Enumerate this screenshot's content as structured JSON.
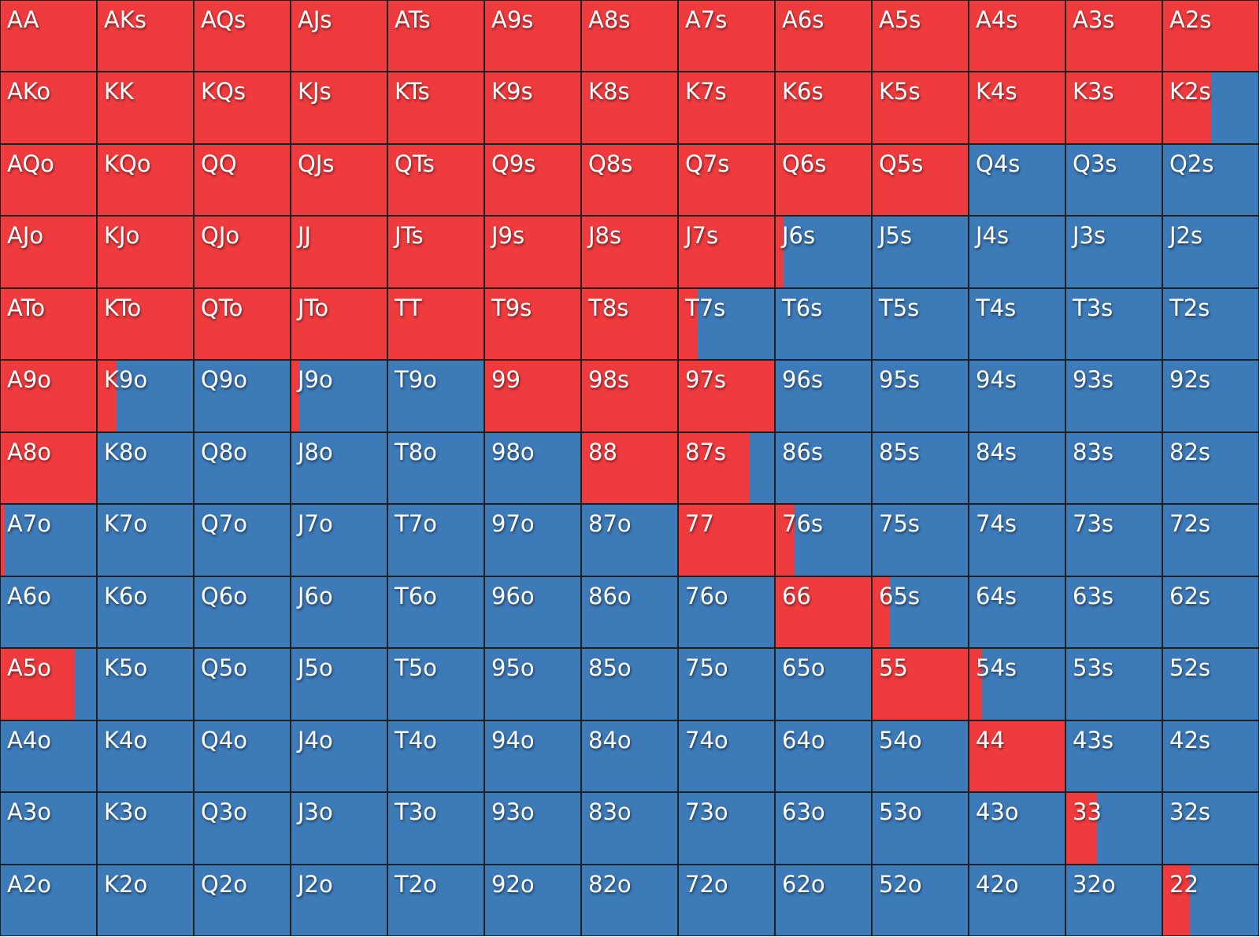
{
  "colors": {
    "action_1": "#ef3b3e",
    "action_2": "#3d7ab8"
  },
  "hand_matrix": {
    "rows": [
      [
        {
          "hand": "AA",
          "freq": 1
        },
        {
          "hand": "AKs",
          "freq": 1
        },
        {
          "hand": "AQs",
          "freq": 1
        },
        {
          "hand": "AJs",
          "freq": 1
        },
        {
          "hand": "ATs",
          "freq": 1
        },
        {
          "hand": "A9s",
          "freq": 1
        },
        {
          "hand": "A8s",
          "freq": 1
        },
        {
          "hand": "A7s",
          "freq": 1
        },
        {
          "hand": "A6s",
          "freq": 1
        },
        {
          "hand": "A5s",
          "freq": 1
        },
        {
          "hand": "A4s",
          "freq": 1
        },
        {
          "hand": "A3s",
          "freq": 1
        },
        {
          "hand": "A2s",
          "freq": 1
        }
      ],
      [
        {
          "hand": "AKo",
          "freq": 1
        },
        {
          "hand": "KK",
          "freq": 1
        },
        {
          "hand": "KQs",
          "freq": 1
        },
        {
          "hand": "KJs",
          "freq": 1
        },
        {
          "hand": "KTs",
          "freq": 1
        },
        {
          "hand": "K9s",
          "freq": 1
        },
        {
          "hand": "K8s",
          "freq": 1
        },
        {
          "hand": "K7s",
          "freq": 1
        },
        {
          "hand": "K6s",
          "freq": 1
        },
        {
          "hand": "K5s",
          "freq": 1
        },
        {
          "hand": "K4s",
          "freq": 1
        },
        {
          "hand": "K3s",
          "freq": 1
        },
        {
          "hand": "K2s",
          "freq": 0.5
        }
      ],
      [
        {
          "hand": "AQo",
          "freq": 1
        },
        {
          "hand": "KQo",
          "freq": 1
        },
        {
          "hand": "QQ",
          "freq": 1
        },
        {
          "hand": "QJs",
          "freq": 1
        },
        {
          "hand": "QTs",
          "freq": 1
        },
        {
          "hand": "Q9s",
          "freq": 1
        },
        {
          "hand": "Q8s",
          "freq": 1
        },
        {
          "hand": "Q7s",
          "freq": 1
        },
        {
          "hand": "Q6s",
          "freq": 1
        },
        {
          "hand": "Q5s",
          "freq": 1
        },
        {
          "hand": "Q4s",
          "freq": 0
        },
        {
          "hand": "Q3s",
          "freq": 0
        },
        {
          "hand": "Q2s",
          "freq": 0
        }
      ],
      [
        {
          "hand": "AJo",
          "freq": 1
        },
        {
          "hand": "KJo",
          "freq": 1
        },
        {
          "hand": "QJo",
          "freq": 1
        },
        {
          "hand": "JJ",
          "freq": 1
        },
        {
          "hand": "JTs",
          "freq": 1
        },
        {
          "hand": "J9s",
          "freq": 1
        },
        {
          "hand": "J8s",
          "freq": 1
        },
        {
          "hand": "J7s",
          "freq": 1
        },
        {
          "hand": "J6s",
          "freq": 0.08
        },
        {
          "hand": "J5s",
          "freq": 0
        },
        {
          "hand": "J4s",
          "freq": 0
        },
        {
          "hand": "J3s",
          "freq": 0
        },
        {
          "hand": "J2s",
          "freq": 0
        }
      ],
      [
        {
          "hand": "ATo",
          "freq": 1
        },
        {
          "hand": "KTo",
          "freq": 1
        },
        {
          "hand": "QTo",
          "freq": 1
        },
        {
          "hand": "JTo",
          "freq": 1
        },
        {
          "hand": "TT",
          "freq": 1
        },
        {
          "hand": "T9s",
          "freq": 1
        },
        {
          "hand": "T8s",
          "freq": 1
        },
        {
          "hand": "T7s",
          "freq": 0.2
        },
        {
          "hand": "T6s",
          "freq": 0
        },
        {
          "hand": "T5s",
          "freq": 0
        },
        {
          "hand": "T4s",
          "freq": 0
        },
        {
          "hand": "T3s",
          "freq": 0
        },
        {
          "hand": "T2s",
          "freq": 0
        }
      ],
      [
        {
          "hand": "A9o",
          "freq": 1
        },
        {
          "hand": "K9o",
          "freq": 0.2
        },
        {
          "hand": "Q9o",
          "freq": 0
        },
        {
          "hand": "J9o",
          "freq": 0.08
        },
        {
          "hand": "T9o",
          "freq": 0
        },
        {
          "hand": "99",
          "freq": 1
        },
        {
          "hand": "98s",
          "freq": 1
        },
        {
          "hand": "97s",
          "freq": 1
        },
        {
          "hand": "96s",
          "freq": 0
        },
        {
          "hand": "95s",
          "freq": 0
        },
        {
          "hand": "94s",
          "freq": 0
        },
        {
          "hand": "93s",
          "freq": 0
        },
        {
          "hand": "92s",
          "freq": 0
        }
      ],
      [
        {
          "hand": "A8o",
          "freq": 1
        },
        {
          "hand": "K8o",
          "freq": 0
        },
        {
          "hand": "Q8o",
          "freq": 0
        },
        {
          "hand": "J8o",
          "freq": 0
        },
        {
          "hand": "T8o",
          "freq": 0
        },
        {
          "hand": "98o",
          "freq": 0
        },
        {
          "hand": "88",
          "freq": 1
        },
        {
          "hand": "87s",
          "freq": 0.74
        },
        {
          "hand": "86s",
          "freq": 0
        },
        {
          "hand": "85s",
          "freq": 0
        },
        {
          "hand": "84s",
          "freq": 0
        },
        {
          "hand": "83s",
          "freq": 0
        },
        {
          "hand": "82s",
          "freq": 0
        }
      ],
      [
        {
          "hand": "A7o",
          "freq": 0.04
        },
        {
          "hand": "K7o",
          "freq": 0
        },
        {
          "hand": "Q7o",
          "freq": 0
        },
        {
          "hand": "J7o",
          "freq": 0
        },
        {
          "hand": "T7o",
          "freq": 0
        },
        {
          "hand": "97o",
          "freq": 0
        },
        {
          "hand": "87o",
          "freq": 0
        },
        {
          "hand": "77",
          "freq": 1
        },
        {
          "hand": "76s",
          "freq": 0.2
        },
        {
          "hand": "75s",
          "freq": 0
        },
        {
          "hand": "74s",
          "freq": 0
        },
        {
          "hand": "73s",
          "freq": 0
        },
        {
          "hand": "72s",
          "freq": 0
        }
      ],
      [
        {
          "hand": "A6o",
          "freq": 0
        },
        {
          "hand": "K6o",
          "freq": 0
        },
        {
          "hand": "Q6o",
          "freq": 0
        },
        {
          "hand": "J6o",
          "freq": 0
        },
        {
          "hand": "T6o",
          "freq": 0
        },
        {
          "hand": "96o",
          "freq": 0
        },
        {
          "hand": "86o",
          "freq": 0
        },
        {
          "hand": "76o",
          "freq": 0
        },
        {
          "hand": "66",
          "freq": 1
        },
        {
          "hand": "65s",
          "freq": 0.18
        },
        {
          "hand": "64s",
          "freq": 0
        },
        {
          "hand": "63s",
          "freq": 0
        },
        {
          "hand": "62s",
          "freq": 0
        }
      ],
      [
        {
          "hand": "A5o",
          "freq": 0.78
        },
        {
          "hand": "K5o",
          "freq": 0
        },
        {
          "hand": "Q5o",
          "freq": 0
        },
        {
          "hand": "J5o",
          "freq": 0
        },
        {
          "hand": "T5o",
          "freq": 0
        },
        {
          "hand": "95o",
          "freq": 0
        },
        {
          "hand": "85o",
          "freq": 0
        },
        {
          "hand": "75o",
          "freq": 0
        },
        {
          "hand": "65o",
          "freq": 0
        },
        {
          "hand": "55",
          "freq": 1
        },
        {
          "hand": "54s",
          "freq": 0.13
        },
        {
          "hand": "53s",
          "freq": 0
        },
        {
          "hand": "52s",
          "freq": 0
        }
      ],
      [
        {
          "hand": "A4o",
          "freq": 0
        },
        {
          "hand": "K4o",
          "freq": 0
        },
        {
          "hand": "Q4o",
          "freq": 0
        },
        {
          "hand": "J4o",
          "freq": 0
        },
        {
          "hand": "T4o",
          "freq": 0
        },
        {
          "hand": "94o",
          "freq": 0
        },
        {
          "hand": "84o",
          "freq": 0
        },
        {
          "hand": "74o",
          "freq": 0
        },
        {
          "hand": "64o",
          "freq": 0
        },
        {
          "hand": "54o",
          "freq": 0
        },
        {
          "hand": "44",
          "freq": 1
        },
        {
          "hand": "43s",
          "freq": 0
        },
        {
          "hand": "42s",
          "freq": 0
        }
      ],
      [
        {
          "hand": "A3o",
          "freq": 0
        },
        {
          "hand": "K3o",
          "freq": 0
        },
        {
          "hand": "Q3o",
          "freq": 0
        },
        {
          "hand": "J3o",
          "freq": 0
        },
        {
          "hand": "T3o",
          "freq": 0
        },
        {
          "hand": "93o",
          "freq": 0
        },
        {
          "hand": "83o",
          "freq": 0
        },
        {
          "hand": "73o",
          "freq": 0
        },
        {
          "hand": "63o",
          "freq": 0
        },
        {
          "hand": "53o",
          "freq": 0
        },
        {
          "hand": "43o",
          "freq": 0
        },
        {
          "hand": "33",
          "freq": 0.32
        },
        {
          "hand": "32s",
          "freq": 0
        }
      ],
      [
        {
          "hand": "A2o",
          "freq": 0
        },
        {
          "hand": "K2o",
          "freq": 0
        },
        {
          "hand": "Q2o",
          "freq": 0
        },
        {
          "hand": "J2o",
          "freq": 0
        },
        {
          "hand": "T2o",
          "freq": 0
        },
        {
          "hand": "92o",
          "freq": 0
        },
        {
          "hand": "82o",
          "freq": 0
        },
        {
          "hand": "72o",
          "freq": 0
        },
        {
          "hand": "62o",
          "freq": 0
        },
        {
          "hand": "52o",
          "freq": 0
        },
        {
          "hand": "42o",
          "freq": 0
        },
        {
          "hand": "32o",
          "freq": 0
        },
        {
          "hand": "22",
          "freq": 0.28
        }
      ]
    ]
  }
}
